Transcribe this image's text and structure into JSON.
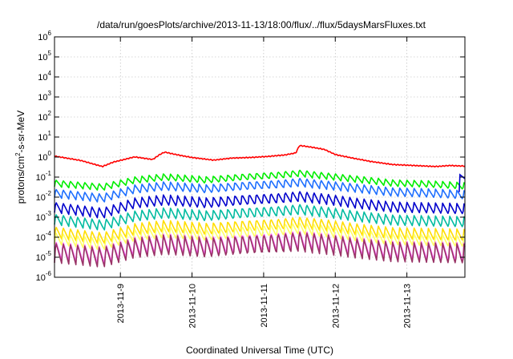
{
  "chart_data": {
    "type": "line",
    "title": "/data/run/goesPlots/archive/2013-11-13/18:00/flux/../flux/5daysMarsFluxes.txt",
    "xlabel": "Coordinated Universal Time (UTC)",
    "ylabel_parts": [
      "protons/cm",
      "2",
      "-s-sr-MeV"
    ],
    "y_scale": "log",
    "ylim_exponents": [
      -6,
      6
    ],
    "y_tick_base": "10",
    "y_tick_exponents": [
      "-6",
      "-5",
      "-4",
      "-3",
      "-2",
      "-1",
      "0",
      "1",
      "2",
      "3",
      "4",
      "5",
      "6"
    ],
    "xlim_days": [
      8.08,
      13.81
    ],
    "x_ticks": [
      {
        "label": "2013-11-9",
        "day": 9
      },
      {
        "label": "2013-11-10",
        "day": 10
      },
      {
        "label": "2013-11-11",
        "day": 11
      },
      {
        "label": "2013-11-12",
        "day": 12
      },
      {
        "label": "2013-11-13",
        "day": 13
      }
    ],
    "grid": true,
    "legend": "none",
    "series": [
      {
        "color": "#ff0000",
        "style": "trend",
        "amp": 0.11,
        "points": [
          [
            8.08,
            0.02
          ],
          [
            8.45,
            -0.2
          ],
          [
            8.75,
            -0.5
          ],
          [
            8.9,
            -0.28
          ],
          [
            9.2,
            -0.02
          ],
          [
            9.45,
            -0.15
          ],
          [
            9.55,
            0.1
          ],
          [
            9.62,
            0.22
          ],
          [
            9.8,
            0.08
          ],
          [
            10.0,
            -0.05
          ],
          [
            10.3,
            -0.18
          ],
          [
            10.55,
            -0.08
          ],
          [
            10.8,
            -0.05
          ],
          [
            11.05,
            0.0
          ],
          [
            11.3,
            0.08
          ],
          [
            11.45,
            0.18
          ],
          [
            11.5,
            0.55
          ],
          [
            11.7,
            0.45
          ],
          [
            11.85,
            0.35
          ],
          [
            12.0,
            0.1
          ],
          [
            12.2,
            -0.05
          ],
          [
            12.5,
            -0.25
          ],
          [
            12.8,
            -0.4
          ],
          [
            13.1,
            -0.45
          ],
          [
            13.4,
            -0.5
          ],
          [
            13.6,
            -0.45
          ],
          [
            13.81,
            -0.48
          ]
        ]
      },
      {
        "color": "#00ee00",
        "style": "saw",
        "amp": 0.35,
        "points": [
          [
            8.08,
            -1.3
          ],
          [
            8.75,
            -1.5
          ],
          [
            9.2,
            -1.15
          ],
          [
            9.62,
            -1.0
          ],
          [
            10.2,
            -1.15
          ],
          [
            10.7,
            -1.0
          ],
          [
            11.2,
            -0.9
          ],
          [
            11.5,
            -0.8
          ],
          [
            11.9,
            -0.95
          ],
          [
            12.3,
            -1.1
          ],
          [
            12.8,
            -1.3
          ],
          [
            13.3,
            -1.35
          ],
          [
            13.81,
            -1.45
          ]
        ]
      },
      {
        "color": "#1e6fff",
        "style": "saw",
        "amp": 0.45,
        "points": [
          [
            8.08,
            -1.8
          ],
          [
            8.75,
            -2.05
          ],
          [
            9.2,
            -1.6
          ],
          [
            9.62,
            -1.45
          ],
          [
            10.2,
            -1.6
          ],
          [
            10.7,
            -1.45
          ],
          [
            11.2,
            -1.35
          ],
          [
            11.5,
            -1.25
          ],
          [
            11.9,
            -1.4
          ],
          [
            12.3,
            -1.55
          ],
          [
            12.8,
            -1.75
          ],
          [
            13.3,
            -1.8
          ],
          [
            13.81,
            -1.9
          ]
        ]
      },
      {
        "color": "#0000cc",
        "style": "saw",
        "amp": 0.55,
        "points": [
          [
            8.08,
            -2.5
          ],
          [
            8.75,
            -2.8
          ],
          [
            9.2,
            -2.3
          ],
          [
            9.62,
            -2.15
          ],
          [
            10.2,
            -2.3
          ],
          [
            10.7,
            -2.15
          ],
          [
            11.2,
            -2.05
          ],
          [
            11.5,
            -1.95
          ],
          [
            11.9,
            -2.1
          ],
          [
            12.3,
            -2.3
          ],
          [
            12.8,
            -2.5
          ],
          [
            13.3,
            -2.55
          ],
          [
            13.81,
            -2.6
          ]
        ]
      },
      {
        "color": "#00bba0",
        "style": "saw",
        "amp": 0.55,
        "points": [
          [
            8.08,
            -3.1
          ],
          [
            8.75,
            -3.4
          ],
          [
            9.2,
            -2.95
          ],
          [
            9.62,
            -2.8
          ],
          [
            10.2,
            -2.95
          ],
          [
            10.7,
            -2.8
          ],
          [
            11.2,
            -2.7
          ],
          [
            11.5,
            -2.6
          ],
          [
            11.9,
            -2.75
          ],
          [
            12.3,
            -2.95
          ],
          [
            12.8,
            -3.15
          ],
          [
            13.3,
            -3.2
          ],
          [
            13.81,
            -3.25
          ]
        ]
      },
      {
        "color": "#ffdd00",
        "style": "saw",
        "amp": 0.6,
        "points": [
          [
            8.08,
            -3.75
          ],
          [
            8.75,
            -4.05
          ],
          [
            9.2,
            -3.6
          ],
          [
            9.62,
            -3.45
          ],
          [
            10.2,
            -3.6
          ],
          [
            10.7,
            -3.45
          ],
          [
            11.2,
            -3.35
          ],
          [
            11.5,
            -3.25
          ],
          [
            11.9,
            -3.4
          ],
          [
            12.3,
            -3.6
          ],
          [
            12.8,
            -3.8
          ],
          [
            13.3,
            -3.85
          ],
          [
            13.81,
            -3.9
          ]
        ]
      },
      {
        "color": "#ffff66",
        "style": "saw",
        "amp": 0.6,
        "points": [
          [
            8.08,
            -4.05
          ],
          [
            8.75,
            -4.35
          ],
          [
            9.2,
            -3.9
          ],
          [
            9.62,
            -3.75
          ],
          [
            10.2,
            -3.9
          ],
          [
            10.7,
            -3.75
          ],
          [
            11.2,
            -3.65
          ],
          [
            11.5,
            -3.55
          ],
          [
            11.9,
            -3.7
          ],
          [
            12.3,
            -3.9
          ],
          [
            12.8,
            -4.1
          ],
          [
            13.3,
            -4.15
          ],
          [
            13.81,
            -4.2
          ]
        ]
      },
      {
        "color": "#ff66ff",
        "style": "saw",
        "amp": 0.95,
        "points": [
          [
            8.08,
            -4.65
          ],
          [
            8.75,
            -4.9
          ],
          [
            9.2,
            -4.45
          ],
          [
            9.62,
            -4.3
          ],
          [
            10.2,
            -4.45
          ],
          [
            10.7,
            -4.3
          ],
          [
            11.2,
            -4.2
          ],
          [
            11.5,
            -4.1
          ],
          [
            11.9,
            -4.25
          ],
          [
            12.3,
            -4.45
          ],
          [
            12.8,
            -4.65
          ],
          [
            13.3,
            -4.7
          ],
          [
            13.81,
            -4.75
          ]
        ]
      },
      {
        "color": "#993366",
        "style": "saw",
        "amp": 1.05,
        "points": [
          [
            8.08,
            -4.75
          ],
          [
            8.75,
            -5.0
          ],
          [
            9.2,
            -4.55
          ],
          [
            9.62,
            -4.4
          ],
          [
            10.2,
            -4.55
          ],
          [
            10.7,
            -4.4
          ],
          [
            11.2,
            -4.3
          ],
          [
            11.5,
            -4.2
          ],
          [
            11.9,
            -4.35
          ],
          [
            12.3,
            -4.55
          ],
          [
            12.8,
            -4.75
          ],
          [
            13.3,
            -4.8
          ],
          [
            13.81,
            -4.85
          ]
        ]
      }
    ],
    "end_spike": {
      "color": "#0000cc",
      "day": 13.73,
      "low_exp": -1.75,
      "high_exp": -0.88
    }
  }
}
